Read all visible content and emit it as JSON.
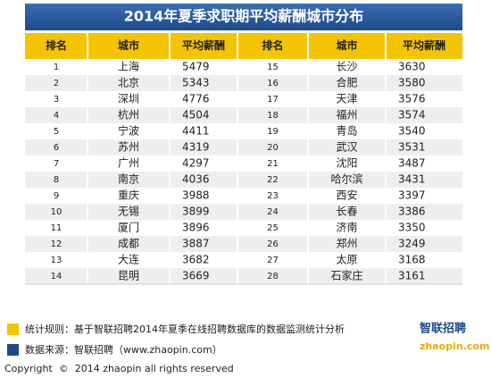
{
  "title": "2014年夏季求职期平均薪酬城市分布",
  "table": {
    "header": [
      "排名",
      "城市",
      "平均薪酬",
      "排名",
      "城市",
      "平均薪酬"
    ],
    "rows": [
      [
        1,
        "上海",
        5479,
        15,
        "长沙",
        3630
      ],
      [
        2,
        "北京",
        5343,
        16,
        "合肥",
        3580
      ],
      [
        3,
        "深圳",
        4776,
        17,
        "天津",
        3576
      ],
      [
        4,
        "杭州",
        4504,
        18,
        "福州",
        3574
      ],
      [
        5,
        "宁波",
        4411,
        19,
        "青岛",
        3540
      ],
      [
        6,
        "苏州",
        4319,
        20,
        "武汉",
        3531
      ],
      [
        7,
        "广州",
        4297,
        21,
        "沈阳",
        3487
      ],
      [
        8,
        "南京",
        4036,
        22,
        "哈尔滨",
        3431
      ],
      [
        9,
        "重庆",
        3988,
        23,
        "西安",
        3397
      ],
      [
        10,
        "无锡",
        3899,
        24,
        "长春",
        3386
      ],
      [
        11,
        "厦门",
        3896,
        25,
        "济南",
        3350
      ],
      [
        12,
        "成都",
        3887,
        26,
        "郑州",
        3249
      ],
      [
        13,
        "大连",
        3682,
        27,
        "太原",
        3168
      ],
      [
        14,
        "昆明",
        3669,
        28,
        "石家庄",
        3161
      ]
    ]
  },
  "footer": {
    "rule": "统计规则：基于智联招聘2014年夏季在线招聘数据库的数据监测统计分析",
    "source": "数据来源：智联招聘（www.zhaopin.com）",
    "copyright": "Copyright  ©  2014 zhaopin all rights reserved"
  },
  "logo": {
    "brand": "智联招聘",
    "site": "zhaopin.com"
  }
}
